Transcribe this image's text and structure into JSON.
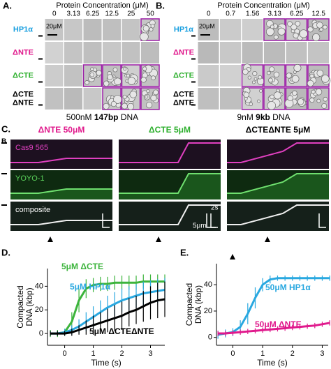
{
  "panels": {
    "A": {
      "label": "A.",
      "header": "Protein Concentration (μM)",
      "columns": [
        0,
        3.13,
        6.25,
        12.5,
        25,
        50
      ],
      "rows": [
        [
          "HP1α"
        ],
        [
          "ΔNTE"
        ],
        [
          "ΔCTE"
        ],
        [
          "ΔCTE",
          "ΔNTE"
        ]
      ],
      "scale": "20μM",
      "caption": [
        "500nM ",
        "147bp",
        " DNA"
      ]
    },
    "B": {
      "label": "B.",
      "header": "Protein Concentration (μM)",
      "columns": [
        0,
        0.7,
        1.56,
        3.13,
        6.25,
        12.5
      ],
      "rows": [
        [
          "HP1α"
        ],
        [
          "ΔNTE"
        ],
        [
          "ΔCTE"
        ],
        [
          "ΔCTE",
          "ΔNTE"
        ]
      ],
      "scale": "20μM",
      "caption": [
        "9nM ",
        "9kb",
        " DNA"
      ]
    },
    "C": {
      "label": "C.",
      "side_label": "B",
      "headers": [
        "ΔNTE 50μM",
        "ΔCTE 5μM",
        "ΔCTEΔNTE 5μM"
      ],
      "channels": [
        "Cas9 565",
        "YOYO-1",
        "composite"
      ],
      "scale_time": "2s",
      "scale_length": "5μm"
    }
  },
  "chart_data": [
    {
      "type": "line",
      "label": "D.",
      "xlabel": "Time (s)",
      "ylabel": [
        "Compacted",
        "DNA (kbp)"
      ],
      "x": [
        -0.5,
        -0.25,
        0,
        0.25,
        0.5,
        0.75,
        1,
        1.25,
        1.5,
        1.75,
        2,
        2.25,
        2.5,
        2.75,
        3,
        3.25,
        3.5
      ],
      "xlim": [
        -0.6,
        3.5
      ],
      "ylim": [
        -10,
        55
      ],
      "xticks": [
        0,
        1,
        2,
        3
      ],
      "yticks": [
        0,
        20,
        40
      ],
      "series": [
        {
          "name": "5μM ΔCTE",
          "color": "#3cb43c",
          "values": [
            0,
            0,
            1,
            10,
            28,
            38,
            41,
            42,
            42,
            43,
            43,
            43,
            43,
            44,
            44,
            44,
            44
          ],
          "errors": [
            3,
            3,
            3,
            8,
            10,
            8,
            6,
            6,
            6,
            6,
            6,
            6,
            6,
            6,
            6,
            6,
            6
          ]
        },
        {
          "name": "5μM HP1α",
          "color": "#29a8e0",
          "values": [
            0,
            0,
            1,
            3,
            6,
            10,
            14,
            18,
            22,
            25,
            28,
            30,
            32,
            34,
            35,
            36,
            37
          ],
          "errors": [
            2,
            2,
            3,
            4,
            6,
            8,
            9,
            10,
            10,
            10,
            10,
            10,
            10,
            10,
            10,
            10,
            10
          ]
        },
        {
          "name": "5μM ΔCTEΔNTE",
          "color": "#000000",
          "values": [
            0,
            0,
            0,
            1,
            3,
            5,
            7,
            9,
            11,
            13,
            15,
            18,
            20,
            23,
            26,
            28,
            29
          ],
          "errors": [
            2,
            2,
            2,
            3,
            4,
            6,
            8,
            9,
            10,
            11,
            12,
            12,
            12,
            13,
            14,
            15,
            15
          ]
        }
      ]
    },
    {
      "type": "line",
      "label": "E.",
      "xlabel": "Time (s)",
      "ylabel": [
        "Compacted",
        "DNA (kbp)"
      ],
      "x": [
        -0.5,
        -0.25,
        0,
        0.25,
        0.5,
        0.75,
        1,
        1.25,
        1.5,
        1.75,
        2,
        2.25,
        2.5,
        2.75,
        3,
        3.25
      ],
      "xlim": [
        -0.55,
        3.2
      ],
      "ylim": [
        -6,
        56
      ],
      "xticks": [
        0,
        1,
        2,
        3
      ],
      "yticks": [
        0,
        20,
        40
      ],
      "series": [
        {
          "name": "50μM HP1α",
          "color": "#29a8e0",
          "values": [
            2,
            3,
            4,
            8,
            18,
            30,
            40,
            44,
            45,
            45,
            45,
            45,
            45,
            45,
            45,
            45
          ],
          "errors": [
            3,
            3,
            3,
            5,
            8,
            8,
            5,
            3,
            2,
            2,
            2,
            2,
            2,
            2,
            2,
            2
          ]
        },
        {
          "name": "50μM ΔNTE",
          "color": "#e0198c",
          "values": [
            3,
            3,
            3.5,
            4,
            4.5,
            5,
            5.5,
            6,
            6.5,
            7,
            7.5,
            8,
            8.5,
            9,
            10,
            11
          ],
          "errors": [
            2,
            2,
            2,
            2,
            2,
            2,
            2,
            2,
            2,
            2,
            2,
            2,
            2,
            2,
            2,
            2
          ]
        }
      ]
    }
  ]
}
